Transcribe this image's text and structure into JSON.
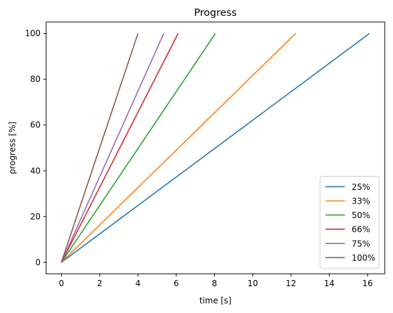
{
  "chart_data": {
    "type": "line",
    "title": "Progress",
    "xlabel": "time [s]",
    "ylabel": "progress [%]",
    "xlim": [
      -0.8,
      16.9
    ],
    "ylim": [
      -5,
      105
    ],
    "xticks": [
      0,
      2,
      4,
      6,
      8,
      10,
      12,
      14,
      16
    ],
    "yticks": [
      0,
      20,
      40,
      60,
      80,
      100
    ],
    "grid": false,
    "legend_position": "lower right",
    "series": [
      {
        "name": "25%",
        "color": "#1f77b4",
        "x": [
          0,
          16.1
        ],
        "y": [
          0,
          100
        ]
      },
      {
        "name": "33%",
        "color": "#ff7f0e",
        "x": [
          0,
          12.25
        ],
        "y": [
          0,
          100
        ]
      },
      {
        "name": "50%",
        "color": "#2ca02c",
        "x": [
          0,
          8.05
        ],
        "y": [
          0,
          100
        ]
      },
      {
        "name": "66%",
        "color": "#d62728",
        "x": [
          0,
          6.1
        ],
        "y": [
          0,
          100
        ]
      },
      {
        "name": "75%",
        "color": "#9467bd",
        "x": [
          0,
          5.35
        ],
        "y": [
          0,
          100
        ]
      },
      {
        "name": "100%",
        "color": "#8c564b",
        "x": [
          0,
          4.0
        ],
        "y": [
          0,
          100
        ]
      }
    ]
  }
}
